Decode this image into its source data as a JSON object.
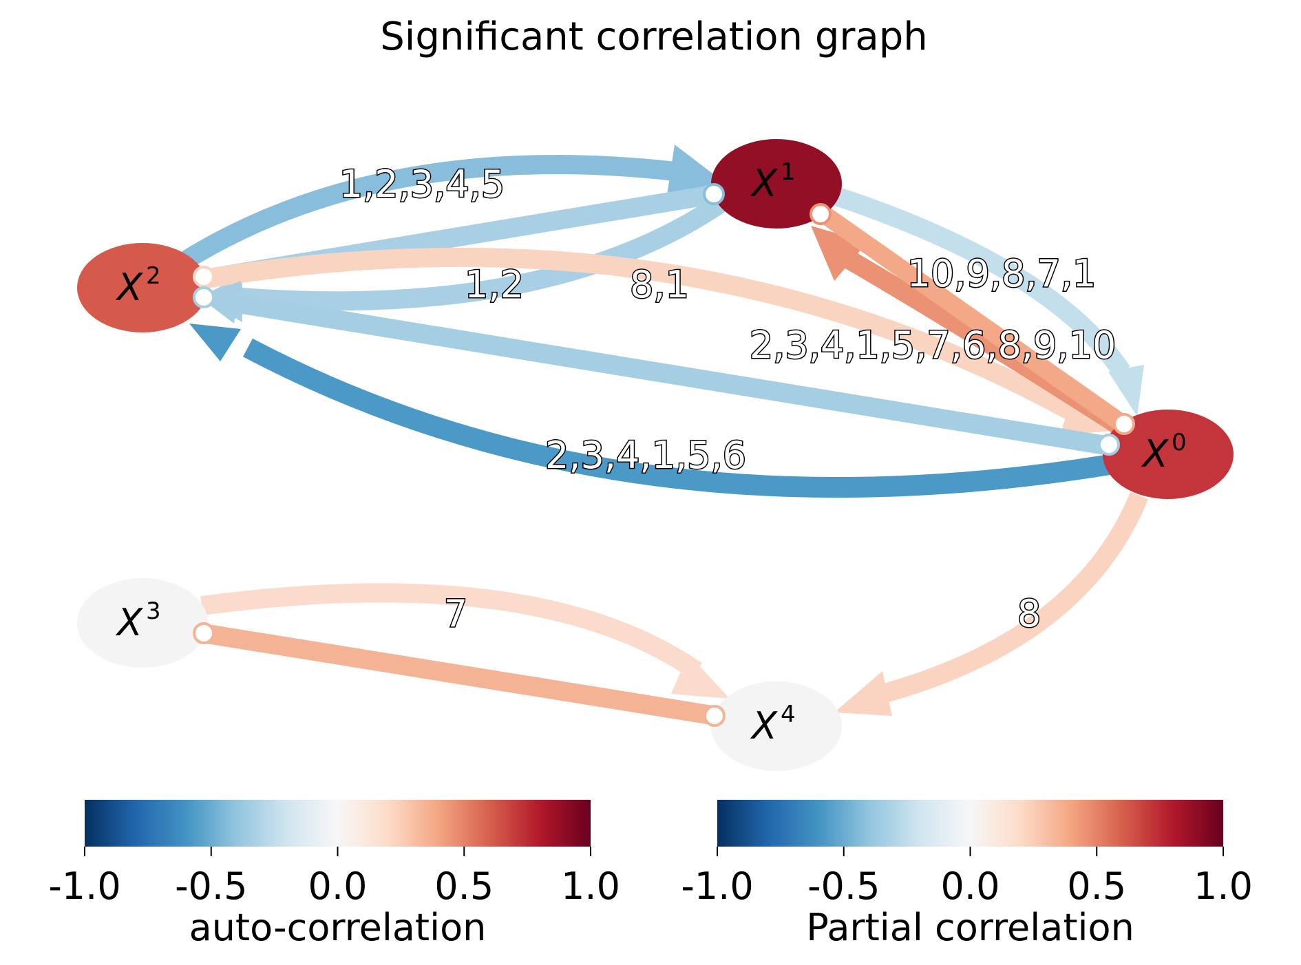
{
  "title": "Significant correlation graph",
  "nodes": [
    {
      "id": "X0",
      "symbol": "X",
      "index": "0",
      "color": "#c3353a"
    },
    {
      "id": "X1",
      "symbol": "X",
      "index": "1",
      "color": "#930f26"
    },
    {
      "id": "X2",
      "symbol": "X",
      "index": "2",
      "color": "#d65a4b"
    },
    {
      "id": "X3",
      "symbol": "X",
      "index": "3",
      "color": "#f4f4f4"
    },
    {
      "id": "X4",
      "symbol": "X",
      "index": "4",
      "color": "#f4f4f4"
    }
  ],
  "edges": [
    {
      "id": "x2-x1-arc",
      "label": "1,2,3,4,5",
      "color": "#88bddb"
    },
    {
      "id": "x1-x2-arc",
      "label": "1,2",
      "color": "#a8cfe3"
    },
    {
      "id": "x2-x0-arc",
      "label": "8,1",
      "color": "#f9d5c1"
    },
    {
      "id": "x1-x0-arc",
      "label": "10,9,8,7,1",
      "color": "#c4dfec"
    },
    {
      "id": "x0-x1-arc",
      "label": "2,3,4,1,5,7,6,8,9,10",
      "color": "#ec9274"
    },
    {
      "id": "x0-x2-line",
      "label": "",
      "color": "#a6cee3"
    },
    {
      "id": "x0-x2-arc",
      "label": "2,3,4,1,5,6",
      "color": "#4b99c6"
    },
    {
      "id": "x0-x4-arc",
      "label": "8",
      "color": "#fad4c0"
    },
    {
      "id": "x3-x4-arc",
      "label": "7",
      "color": "#fbdccc"
    },
    {
      "id": "x4-x3-line",
      "label": "",
      "color": "#f4b395"
    }
  ],
  "colorbars": [
    {
      "label": "auto-correlation",
      "ticks": [
        "-1.0",
        "-0.5",
        "0.0",
        "0.5",
        "1.0"
      ],
      "range": [
        -1.0,
        1.0
      ]
    },
    {
      "label": "Partial correlation",
      "ticks": [
        "-1.0",
        "-0.5",
        "0.0",
        "0.5",
        "1.0"
      ],
      "range": [
        -1.0,
        1.0
      ]
    }
  ],
  "colormap": [
    "#053061",
    "#2166ac",
    "#4393c3",
    "#92c5de",
    "#d1e5f0",
    "#f7f7f7",
    "#fddbc7",
    "#f4a582",
    "#d6604d",
    "#b2182b",
    "#67001f"
  ]
}
